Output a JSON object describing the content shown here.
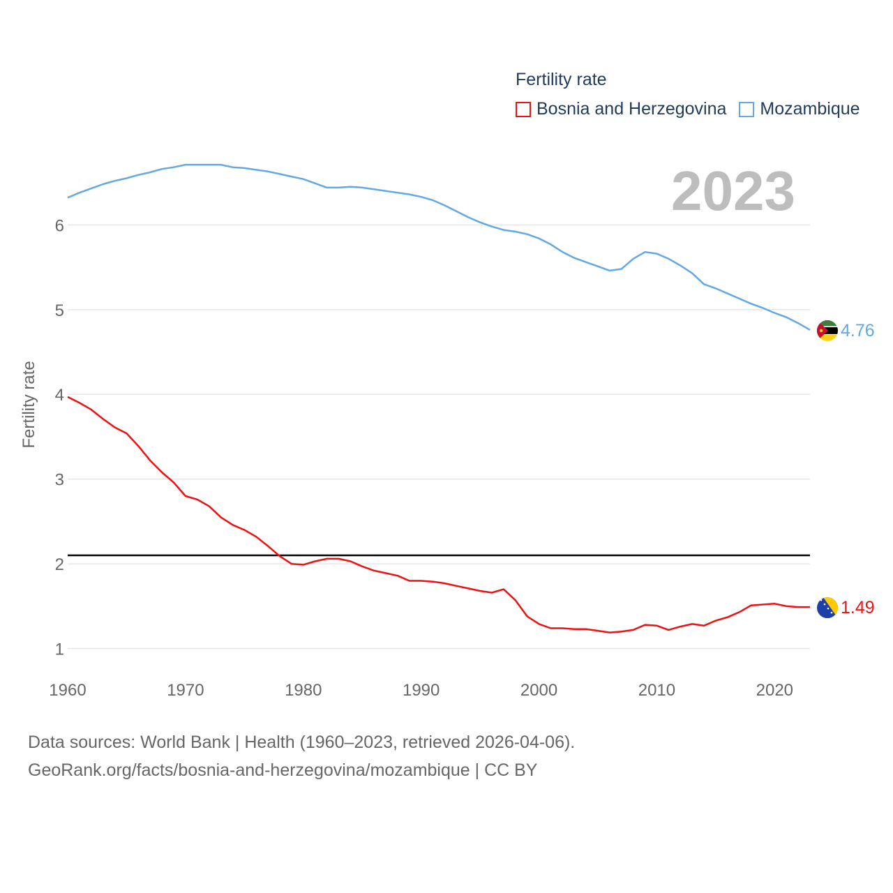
{
  "legend": {
    "title": "Fertility rate",
    "items": [
      {
        "label": "Bosnia and Herzegovina",
        "color": "#ee1111"
      },
      {
        "label": "Mozambique",
        "color": "#62a8e5"
      }
    ]
  },
  "current_year": "2023",
  "source": {
    "line1": "Data sources: World Bank | Health (1960–2023, retrieved 2026-04-06).",
    "line2": "GeoRank.org/facts/bosnia-and-herzegovina/mozambique | CC BY"
  },
  "chart_data": {
    "type": "line",
    "title": "Fertility rate",
    "xlabel": "",
    "ylabel": "Fertility rate",
    "xlim": [
      1960,
      2023
    ],
    "ylim": [
      0.75,
      6.9
    ],
    "x_ticks": [
      1960,
      1970,
      1980,
      1990,
      2000,
      2010,
      2020
    ],
    "y_ticks": [
      1,
      2,
      3,
      4,
      5,
      6
    ],
    "grid": true,
    "reference_line": {
      "value": 2.1,
      "color": "#000000"
    },
    "x": [
      1960,
      1961,
      1962,
      1963,
      1964,
      1965,
      1966,
      1967,
      1968,
      1969,
      1970,
      1971,
      1972,
      1973,
      1974,
      1975,
      1976,
      1977,
      1978,
      1979,
      1980,
      1981,
      1982,
      1983,
      1984,
      1985,
      1986,
      1987,
      1988,
      1989,
      1990,
      1991,
      1992,
      1993,
      1994,
      1995,
      1996,
      1997,
      1998,
      1999,
      2000,
      2001,
      2002,
      2003,
      2004,
      2005,
      2006,
      2007,
      2008,
      2009,
      2010,
      2011,
      2012,
      2013,
      2014,
      2015,
      2016,
      2017,
      2018,
      2019,
      2020,
      2021,
      2022,
      2023
    ],
    "series": [
      {
        "name": "Bosnia and Herzegovina",
        "color": "#ee1111",
        "end_label": "1.49",
        "values": [
          3.97,
          3.9,
          3.82,
          3.71,
          3.61,
          3.54,
          3.39,
          3.22,
          3.08,
          2.96,
          2.8,
          2.76,
          2.68,
          2.55,
          2.46,
          2.4,
          2.32,
          2.21,
          2.09,
          2.0,
          1.99,
          2.03,
          2.06,
          2.06,
          2.03,
          1.97,
          1.92,
          1.89,
          1.86,
          1.8,
          1.8,
          1.79,
          1.77,
          1.74,
          1.71,
          1.68,
          1.66,
          1.7,
          1.57,
          1.38,
          1.29,
          1.24,
          1.24,
          1.23,
          1.23,
          1.21,
          1.19,
          1.2,
          1.22,
          1.28,
          1.27,
          1.22,
          1.26,
          1.29,
          1.27,
          1.33,
          1.37,
          1.43,
          1.51,
          1.52,
          1.53,
          1.5,
          1.49,
          1.49
        ]
      },
      {
        "name": "Mozambique",
        "color": "#62a8e5",
        "end_label": "4.76",
        "values": [
          6.32,
          6.38,
          6.43,
          6.48,
          6.52,
          6.55,
          6.59,
          6.62,
          6.66,
          6.68,
          6.71,
          6.71,
          6.71,
          6.71,
          6.68,
          6.67,
          6.65,
          6.63,
          6.6,
          6.57,
          6.54,
          6.49,
          6.44,
          6.44,
          6.45,
          6.44,
          6.42,
          6.4,
          6.38,
          6.36,
          6.33,
          6.29,
          6.23,
          6.16,
          6.09,
          6.03,
          5.98,
          5.94,
          5.92,
          5.89,
          5.84,
          5.77,
          5.68,
          5.61,
          5.56,
          5.51,
          5.46,
          5.48,
          5.6,
          5.68,
          5.66,
          5.6,
          5.52,
          5.43,
          5.3,
          5.25,
          5.19,
          5.13,
          5.07,
          5.02,
          4.96,
          4.91,
          4.84,
          4.76
        ]
      }
    ]
  }
}
